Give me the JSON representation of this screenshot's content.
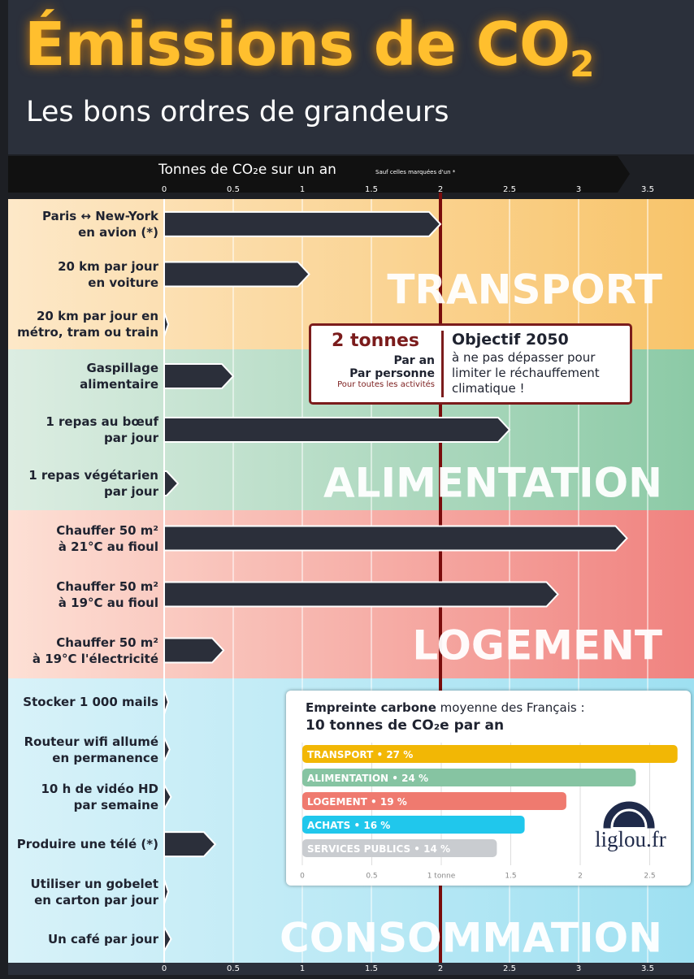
{
  "chart_data": [
    {
      "type": "bar",
      "orientation": "horizontal",
      "title": "Émissions de CO",
      "title_subscript": "2",
      "subtitle": "Les bons ordres de grandeurs",
      "x_label": "Tonnes de CO₂e sur un an",
      "x_note": "Sauf celles marquées d'un *",
      "xlim": [
        0,
        3.8
      ],
      "xticks": [
        0,
        0.5,
        1,
        1.5,
        2,
        2.5,
        3,
        3.5
      ],
      "reference_line": 2,
      "color": "#2b2f3a",
      "grid": true,
      "groups": [
        {
          "name": "TRANSPORT",
          "colors": [
            "#fde8c8",
            "#f8c46a"
          ],
          "categories": [
            "Paris ↔ New-York\nen avion (*)",
            "20 km par jour\nen voiture",
            "20 km par jour en\nmétro, tram ou train"
          ],
          "values": [
            2,
            1.05,
            0.03
          ]
        },
        {
          "name": "ALIMENTATION",
          "colors": [
            "#dcede2",
            "#8ccaa6"
          ],
          "categories": [
            "Gaspillage\nalimentaire",
            "1 repas au bœuf\npar jour",
            "1 repas végétarien\npar jour"
          ],
          "values": [
            0.5,
            2.5,
            0.1
          ]
        },
        {
          "name": "LOGEMENT",
          "colors": [
            "#fde0d5",
            "#f0827f"
          ],
          "categories": [
            "Chauffer 50 m²\nà 21°C au fioul",
            "Chauffer 50 m²\nà 19°C au fioul",
            "Chauffer 50 m²\nà 19°C l'électricité"
          ],
          "values": [
            3.35,
            2.85,
            0.43
          ]
        },
        {
          "name": "CONSOMMATION",
          "colors": [
            "#d8f2f9",
            "#9ee0f1"
          ],
          "categories": [
            "Stocker 1 000 mails",
            "Routeur wifi allumé\nen permanence",
            "10 h de vidéo HD\npar semaine",
            "Produire une télé (*)",
            "Utiliser un gobelet\nen carton par jour",
            "Un café par jour"
          ],
          "values": [
            0.03,
            0.04,
            0.05,
            0.37,
            0.03,
            0.05
          ]
        }
      ]
    },
    {
      "type": "bar",
      "orientation": "horizontal",
      "title_bold": "Empreinte carbone",
      "title_rest": "moyenne des Français :",
      "subtitle": "10 tonnes de CO₂e par an",
      "xlim": [
        0,
        2.8
      ],
      "xticks": [
        0,
        0.5,
        {
          "value": 1,
          "label": "1 tonne"
        },
        1.5,
        2,
        2.5
      ],
      "categories": [
        "TRANSPORT",
        "ALIMENTATION",
        "LOGEMENT",
        "ACHATS",
        "SERVICES PUBLICS"
      ],
      "values": [
        2.7,
        2.4,
        1.9,
        1.6,
        1.4
      ],
      "value_labels": [
        "27 %",
        "24 %",
        "19 %",
        "16 %",
        "14 %"
      ],
      "colors": [
        "#f2b705",
        "#86c4a2",
        "#ef7a6f",
        "#20c7ec",
        "#c9ccd0"
      ]
    }
  ],
  "callout": {
    "value_label": "2 tonnes",
    "lines": [
      "Par an",
      "Par personne"
    ],
    "note": "Pour toutes les activités",
    "title": "Objectif 2050",
    "text": "à ne pas dépasser pour limiter le réchauffement climatique !"
  },
  "logo": "liglou.fr"
}
